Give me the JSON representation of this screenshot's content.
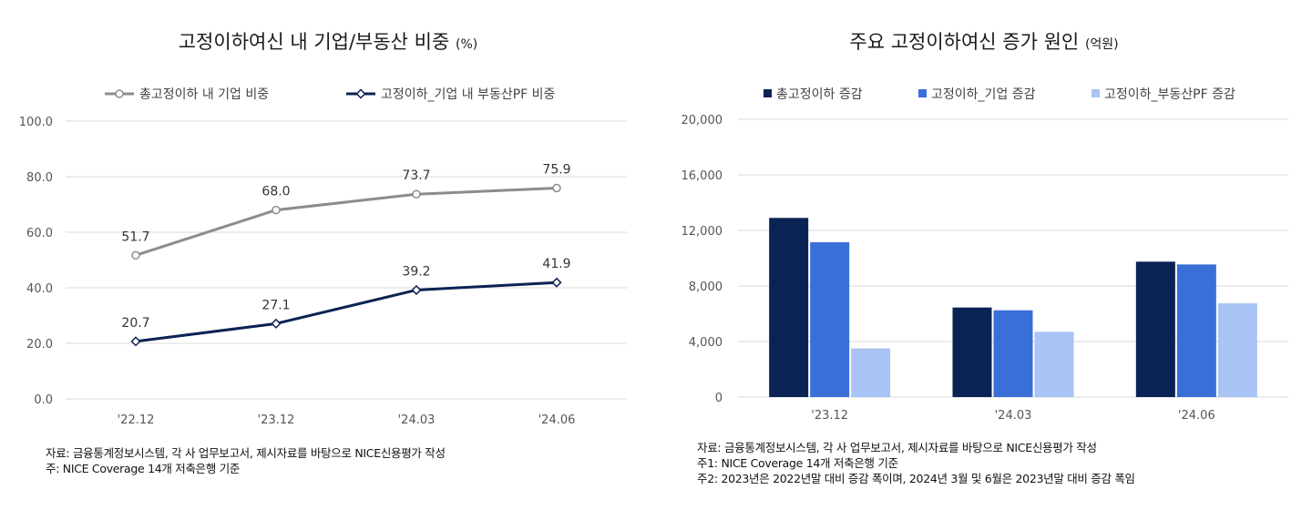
{
  "left": {
    "title": "고정이하여신 내 기업/부동산 비중",
    "title_unit": "(%)",
    "footnotes": [
      "자료: 금융통계정보시스템, 각 사 업무보고서, 제시자료를 바탕으로 NICE신용평가 작성",
      "주: NICE Coverage 14개 저축은행 기준"
    ]
  },
  "right": {
    "title": "주요 고정이하여신 증가 원인",
    "title_unit": "(억원)",
    "footnotes": [
      "자료: 금융통계정보시스템, 각 사 업무보고서, 제시자료를 바탕으로 NICE신용평가 작성",
      "주1: NICE Coverage 14개 저축은행 기준",
      "주2: 2023년은 2022년말 대비 증감 폭이며, 2024년 3월 및 6월은 2023년말 대비 증감 폭임"
    ]
  },
  "chart_data": [
    {
      "type": "line",
      "title": "고정이하여신 내 기업/부동산 비중 (%)",
      "categories": [
        "'22.12",
        "'23.12",
        "'24.03",
        "'24.06"
      ],
      "series": [
        {
          "name": "총고정이하 내 기업 비중",
          "values": [
            51.7,
            68.0,
            73.7,
            75.9
          ],
          "color": "#8c8c8c",
          "marker": "circle"
        },
        {
          "name": "고정이하_기업 내 부동산PF 비중",
          "values": [
            20.7,
            27.1,
            39.2,
            41.9
          ],
          "color": "#0b2254",
          "marker": "diamond"
        }
      ],
      "ylim": [
        0,
        100
      ],
      "yticks": [
        "0.0",
        "20.0",
        "40.0",
        "60.0",
        "80.0",
        "100.0"
      ],
      "ytick_values": [
        0,
        20,
        40,
        60,
        80,
        100
      ],
      "data_labels": [
        [
          "51.7",
          "68.0",
          "73.7",
          "75.9"
        ],
        [
          "20.7",
          "27.1",
          "39.2",
          "41.9"
        ]
      ],
      "legend": "top",
      "grid": true
    },
    {
      "type": "bar",
      "title": "주요 고정이하여신 증가 원인 (억원)",
      "categories": [
        "'23.12",
        "'24.03",
        "'24.06"
      ],
      "series": [
        {
          "name": "총고정이하 증감",
          "values": [
            12900,
            6450,
            9750
          ],
          "color": "#0b2254"
        },
        {
          "name": "고정이하_기업 증감",
          "values": [
            11150,
            6250,
            9550
          ],
          "color": "#3a6fd8"
        },
        {
          "name": "고정이하_부동산PF 증감",
          "values": [
            3500,
            4700,
            6750
          ],
          "color": "#a9c4f5"
        }
      ],
      "ylim": [
        0,
        20000
      ],
      "yticks": [
        "0",
        "4,000",
        "8,000",
        "12,000",
        "16,000",
        "20,000"
      ],
      "ytick_values": [
        0,
        4000,
        8000,
        12000,
        16000,
        20000
      ],
      "legend": "top",
      "grid": true
    }
  ]
}
